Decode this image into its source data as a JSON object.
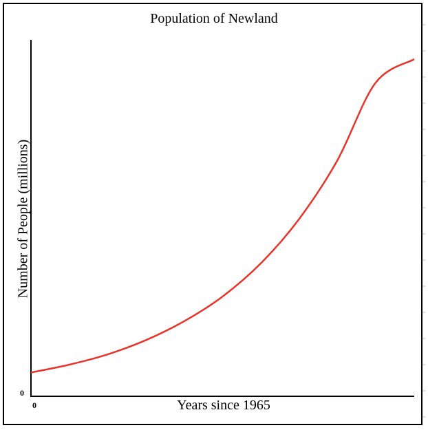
{
  "chart_data": {
    "type": "line",
    "title": "Population of Newland",
    "xlabel": "Years since 1965",
    "ylabel": "Number of People (millions)",
    "x_tick_labels": [
      "0"
    ],
    "y_tick_labels": [
      "0"
    ],
    "xlim": [
      0,
      100
    ],
    "ylim": [
      0,
      100
    ],
    "grid": false,
    "series": [
      {
        "name": "Population",
        "color": "#e8332a",
        "x": [
          0,
          10,
          20,
          30,
          40,
          50,
          60,
          70,
          80,
          90,
          100
        ],
        "y": [
          6.7,
          8.9,
          11.8,
          15.8,
          21.1,
          28.0,
          37.3,
          49.7,
          66.1,
          87.9,
          94.5
        ]
      }
    ]
  }
}
